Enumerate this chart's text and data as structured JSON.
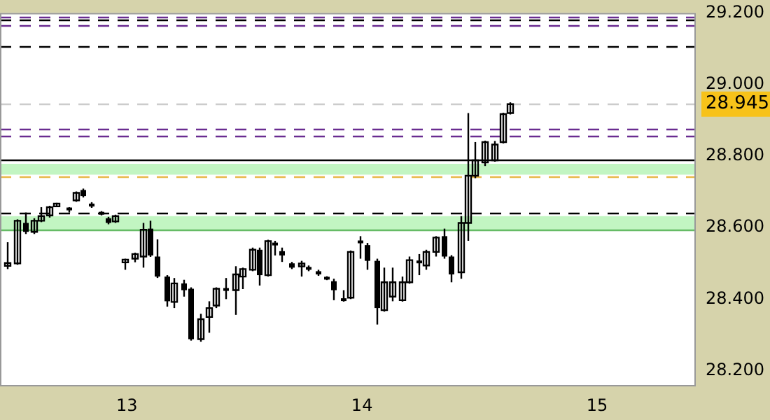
{
  "chart_data": {
    "type": "candlestick",
    "x": [
      12.49,
      12.53,
      12.57,
      12.6,
      12.63,
      12.67,
      12.7,
      12.75,
      12.78,
      12.81,
      12.85,
      12.89,
      12.92,
      12.95,
      12.99,
      13.03,
      13.07,
      13.1,
      13.13,
      13.17,
      13.2,
      13.24,
      13.27,
      13.31,
      13.35,
      13.38,
      13.42,
      13.46,
      13.49,
      13.53,
      13.56,
      13.6,
      13.63,
      13.66,
      13.7,
      13.74,
      13.77,
      13.81,
      13.85,
      13.88,
      13.92,
      13.95,
      13.99,
      14.02,
      14.06,
      14.09,
      14.13,
      14.17,
      14.2,
      14.24,
      14.27,
      14.31,
      14.35,
      14.38,
      14.42,
      14.45,
      14.48,
      14.52,
      14.56,
      14.6,
      14.63
    ],
    "ohlc": [
      [
        28.494,
        28.559,
        28.484,
        28.5
      ],
      [
        28.5,
        28.619,
        28.5,
        28.619
      ],
      [
        28.613,
        28.642,
        28.582,
        28.588
      ],
      [
        28.588,
        28.626,
        28.582,
        28.619
      ],
      [
        28.619,
        28.657,
        28.616,
        28.632
      ],
      [
        28.634,
        28.659,
        28.628,
        28.657
      ],
      [
        28.663,
        28.669,
        28.657,
        28.663
      ],
      [
        28.653,
        28.657,
        28.642,
        28.651
      ],
      [
        28.676,
        28.697,
        28.673,
        28.697
      ],
      [
        28.705,
        28.707,
        28.686,
        28.688
      ],
      [
        28.667,
        28.669,
        28.657,
        28.659
      ],
      [
        28.642,
        28.644,
        28.637,
        28.638
      ],
      [
        28.626,
        28.628,
        28.611,
        28.613
      ],
      [
        28.617,
        28.634,
        28.613,
        28.632
      ],
      [
        28.504,
        28.509,
        28.482,
        28.509
      ],
      [
        28.513,
        28.529,
        28.503,
        28.526
      ],
      [
        28.519,
        28.613,
        28.488,
        28.594
      ],
      [
        28.597,
        28.619,
        28.519,
        28.522
      ],
      [
        28.519,
        28.567,
        28.463,
        28.463
      ],
      [
        28.463,
        28.467,
        28.379,
        28.394
      ],
      [
        28.392,
        28.459,
        28.375,
        28.444
      ],
      [
        28.444,
        28.454,
        28.407,
        28.425
      ],
      [
        28.429,
        28.429,
        28.284,
        28.288
      ],
      [
        28.288,
        28.359,
        28.281,
        28.344
      ],
      [
        28.35,
        28.394,
        28.306,
        28.375
      ],
      [
        28.382,
        28.432,
        28.375,
        28.429
      ],
      [
        28.429,
        28.459,
        28.4,
        28.425
      ],
      [
        28.425,
        28.492,
        28.356,
        28.469
      ],
      [
        28.463,
        28.488,
        28.428,
        28.484
      ],
      [
        28.482,
        28.544,
        28.482,
        28.538
      ],
      [
        28.538,
        28.544,
        28.438,
        28.467
      ],
      [
        28.467,
        28.563,
        28.467,
        28.562
      ],
      [
        28.557,
        28.563,
        28.522,
        28.551
      ],
      [
        28.534,
        28.544,
        28.504,
        28.522
      ],
      [
        28.5,
        28.504,
        28.484,
        28.488
      ],
      [
        28.494,
        28.507,
        28.463,
        28.497
      ],
      [
        28.49,
        28.494,
        28.479,
        28.482
      ],
      [
        28.478,
        28.482,
        28.469,
        28.469
      ],
      [
        28.46,
        28.463,
        28.454,
        28.457
      ],
      [
        28.45,
        28.457,
        28.397,
        28.425
      ],
      [
        28.4,
        28.425,
        28.394,
        28.397
      ],
      [
        28.404,
        28.532,
        28.404,
        28.532
      ],
      [
        28.563,
        28.576,
        28.513,
        28.557
      ],
      [
        28.551,
        28.557,
        28.482,
        28.507
      ],
      [
        28.507,
        28.513,
        28.329,
        28.375
      ],
      [
        28.369,
        28.488,
        28.369,
        28.447
      ],
      [
        28.407,
        28.488,
        28.394,
        28.447
      ],
      [
        28.397,
        28.463,
        28.394,
        28.447
      ],
      [
        28.447,
        28.519,
        28.444,
        28.509
      ],
      [
        28.507,
        28.526,
        28.467,
        28.501
      ],
      [
        28.494,
        28.538,
        28.482,
        28.532
      ],
      [
        28.532,
        28.576,
        28.519,
        28.572
      ],
      [
        28.576,
        28.597,
        28.513,
        28.519
      ],
      [
        28.519,
        28.519,
        28.447,
        28.469
      ],
      [
        28.475,
        28.632,
        28.457,
        28.613
      ],
      [
        28.613,
        28.92,
        28.563,
        28.745
      ],
      [
        28.745,
        28.839,
        28.738,
        28.788
      ],
      [
        28.782,
        28.842,
        28.772,
        28.839
      ],
      [
        28.788,
        28.842,
        28.785,
        28.832
      ],
      [
        28.839,
        28.92,
        28.839,
        28.917
      ],
      [
        28.92,
        28.95,
        28.92,
        28.945
      ]
    ],
    "color": "#000000",
    "xlim": [
      12.46,
      15.42
    ],
    "xticks": [
      13,
      14,
      15
    ],
    "ylim": [
      28.16,
      29.2
    ],
    "yticks": [
      {
        "value": 28.2,
        "label": "28.200"
      },
      {
        "value": 28.4,
        "label": "28.400"
      },
      {
        "value": 28.6,
        "label": "28.600"
      },
      {
        "value": 28.8,
        "label": "28.800"
      },
      {
        "value": 29,
        "label": "29.000"
      },
      {
        "value": 29.2,
        "label": "29.200"
      }
    ],
    "ref_lines": [
      {
        "axis": "y",
        "value": 29.19,
        "color": "#6a2c91",
        "line_style": "dashed"
      },
      {
        "axis": "y",
        "value": 29.18,
        "color": "#000000",
        "line_style": "dashed"
      },
      {
        "axis": "y",
        "value": 29.165,
        "color": "#6a2c91",
        "line_style": "dashed"
      },
      {
        "axis": "y",
        "value": 29.105,
        "color": "#000000",
        "line_style": "dashed"
      },
      {
        "axis": "y",
        "value": 28.945,
        "label": "28.945",
        "color": "#cccccc",
        "line_style": "dashed"
      },
      {
        "axis": "y",
        "value": 28.876,
        "color": "#6a2c91",
        "line_style": "dashed"
      },
      {
        "axis": "y",
        "value": 28.857,
        "color": "#6a2c91",
        "line_style": "dashed"
      },
      {
        "axis": "y",
        "value": 28.789,
        "color": "#000000",
        "line_style": "solid"
      },
      {
        "axis": "y",
        "value": 28.743,
        "color": "#e8b84a",
        "line_style": "dashed"
      },
      {
        "axis": "y",
        "value": 28.642,
        "color": "#000000",
        "line_style": "dashed"
      },
      {
        "axis": "y",
        "value": 28.594,
        "color": "#66bb66",
        "line_style": "solid"
      }
    ],
    "bands": [
      {
        "axis": "y",
        "from": 28.748,
        "to": 28.778,
        "color": "#c2f5c2"
      },
      {
        "axis": "y",
        "from": 28.594,
        "to": 28.632,
        "color": "#c2f5c2"
      }
    ],
    "grid": false,
    "legend": false
  }
}
